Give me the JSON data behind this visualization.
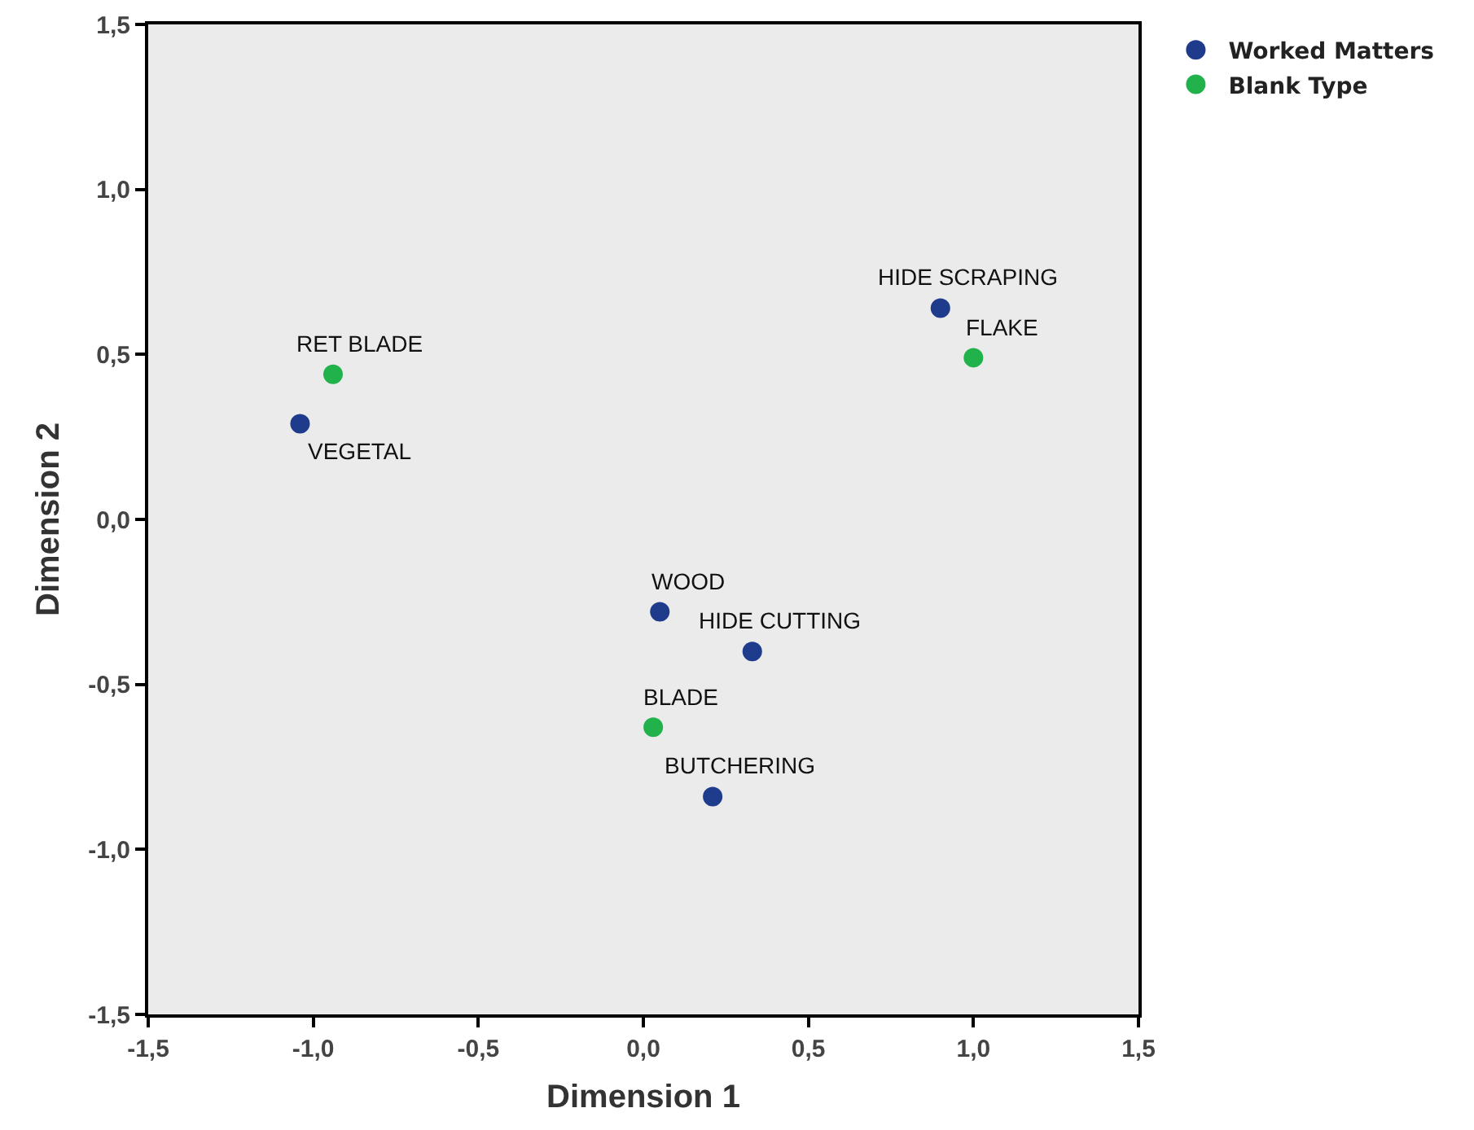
{
  "chart_data": {
    "type": "scatter",
    "xlabel": "Dimension 1",
    "ylabel": "Dimension 2",
    "series": [
      {
        "name": "Worked Matters",
        "color": "#1f3c8c",
        "x": [
          -1.04,
          0.9,
          0.05,
          0.33,
          0.21
        ],
        "values": [
          0.29,
          0.64,
          -0.28,
          -0.4,
          -0.84
        ]
      },
      {
        "name": "Blank Type",
        "color": "#22b24c",
        "x": [
          -0.94,
          1.0,
          0.03
        ],
        "values": [
          0.44,
          0.49,
          -0.63
        ]
      }
    ],
    "xlim": [
      -1.5,
      1.5
    ],
    "ylim": [
      -1.5,
      1.5
    ],
    "xticks": [
      {
        "value": -1.5,
        "label": "-1,5"
      },
      {
        "value": -1.0,
        "label": "-1,0"
      },
      {
        "value": -0.5,
        "label": "-0,5"
      },
      {
        "value": 0.0,
        "label": "0,0"
      },
      {
        "value": 0.5,
        "label": "0,5"
      },
      {
        "value": 1.0,
        "label": "1,0"
      },
      {
        "value": 1.5,
        "label": "1,5"
      }
    ],
    "yticks": [
      {
        "value": -1.5,
        "label": "-1,5"
      },
      {
        "value": -1.0,
        "label": "-1,0"
      },
      {
        "value": -0.5,
        "label": "-0,5"
      },
      {
        "value": 0.0,
        "label": "0,0"
      },
      {
        "value": 0.5,
        "label": "0,5"
      },
      {
        "value": 1.0,
        "label": "1,0"
      },
      {
        "value": 1.5,
        "label": "1,5"
      }
    ],
    "grid": false,
    "legend": "top right",
    "marker": "circle",
    "annotations": [
      {
        "text": "RET BLADE",
        "x": -0.94,
        "y": 0.44
      },
      {
        "text": "VEGETAL",
        "x": -1.04,
        "y": 0.29
      },
      {
        "text": "HIDE SCRAPING",
        "x": 0.9,
        "y": 0.64
      },
      {
        "text": "FLAKE",
        "x": 1.0,
        "y": 0.49
      },
      {
        "text": "WOOD",
        "x": 0.05,
        "y": -0.28
      },
      {
        "text": "HIDE CUTTING",
        "x": 0.33,
        "y": -0.4
      },
      {
        "text": "BLADE",
        "x": 0.03,
        "y": -0.63
      },
      {
        "text": "BUTCHERING",
        "x": 0.21,
        "y": -0.84
      }
    ]
  }
}
